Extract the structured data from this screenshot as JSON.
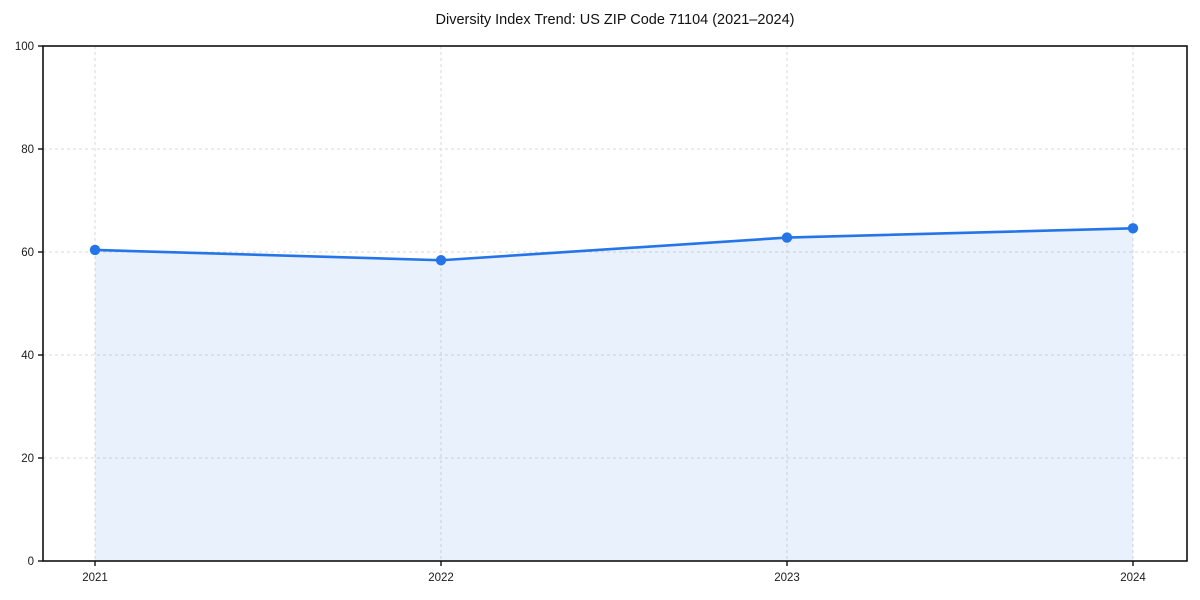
{
  "chart_data": {
    "type": "area",
    "title": "Diversity Index Trend: US ZIP Code 71104 (2021–2024)",
    "x": [
      2021,
      2022,
      2023,
      2024
    ],
    "values": [
      60.4,
      58.4,
      62.8,
      64.6
    ],
    "xlabel": "",
    "ylabel": "",
    "ylim": [
      0,
      100
    ],
    "yticks": [
      0,
      20,
      40,
      60,
      80,
      100
    ],
    "xtick_labels": [
      "2021",
      "2022",
      "2023",
      "2024"
    ],
    "grid": true,
    "legend": "none",
    "colors": {
      "line": "#2575e8",
      "marker": "#2575e8",
      "fill": "#2575e8",
      "fill_opacity": 0.1,
      "grid": "#d9d9d9",
      "spine": "#111111",
      "tick_label": "#1a1a1a",
      "background": "#ffffff"
    }
  }
}
